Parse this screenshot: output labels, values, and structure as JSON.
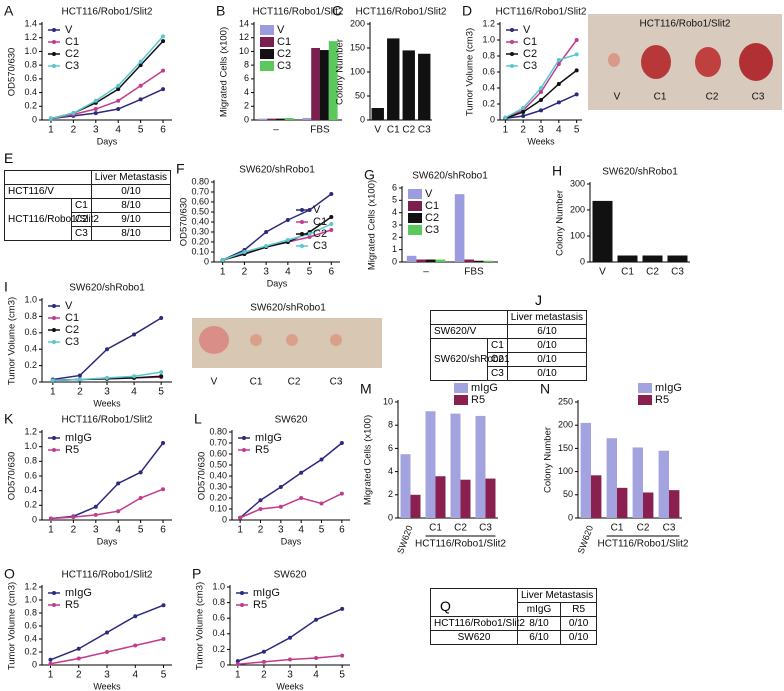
{
  "chart_data": [
    {
      "type": "line",
      "panel": "A",
      "title": "HCT116/Robo1/Slit2",
      "ylabel": "OD570/630",
      "xlabel": "Days",
      "legend": "upper left",
      "x": [
        1,
        2,
        3,
        4,
        5,
        6
      ],
      "xlim": [
        0.6,
        6.4
      ],
      "xticks": [
        1,
        2,
        3,
        4,
        5,
        6
      ],
      "ylim": [
        0,
        1.4
      ],
      "yticks": [
        0,
        0.2,
        0.4,
        0.6,
        0.8,
        {
          "value": 1,
          "label": "1.0"
        },
        1.2,
        1.4
      ],
      "series": [
        {
          "name": "V",
          "color": "#2b2a7d",
          "values": [
            0.02,
            0.06,
            0.1,
            0.16,
            0.3,
            0.45
          ]
        },
        {
          "name": "C1",
          "color": "#c23b8c",
          "values": [
            0.02,
            0.08,
            0.16,
            0.28,
            0.5,
            0.72
          ]
        },
        {
          "name": "C2",
          "color": "#111111",
          "values": [
            0.02,
            0.1,
            0.25,
            0.45,
            0.8,
            1.15
          ]
        },
        {
          "name": "C3",
          "color": "#5bc8d0",
          "values": [
            0.02,
            0.1,
            0.28,
            0.5,
            0.85,
            1.22
          ]
        }
      ]
    },
    {
      "type": "bar",
      "panel": "B",
      "title": "HCT116/Robo1/Slit2",
      "ylabel": "Migrated Cells (x100)",
      "legend": "upper left",
      "categories": [
        "–",
        "FBS"
      ],
      "ylim": [
        0,
        14
      ],
      "yticks": [
        0,
        2,
        4,
        6,
        8,
        10,
        12,
        14
      ],
      "series": [
        {
          "name": "V",
          "color": "#9b9be0",
          "values": [
            0.2,
            0.3
          ]
        },
        {
          "name": "C1",
          "color": "#7a1f4e",
          "values": [
            0.2,
            10.5
          ]
        },
        {
          "name": "C2",
          "color": "#111111",
          "values": [
            0.2,
            10.2
          ]
        },
        {
          "name": "C3",
          "color": "#5ac85a",
          "values": [
            0.3,
            11.5
          ]
        }
      ]
    },
    {
      "type": "bar",
      "panel": "C",
      "title": "HCT116/Robo1/Slit2",
      "ylabel": "Colony Number",
      "categories": [
        "V",
        "C1",
        "C2",
        "C3"
      ],
      "ylim": [
        0,
        200
      ],
      "yticks": [
        0,
        50,
        100,
        150,
        200
      ],
      "series": [
        {
          "color": "#111111",
          "values": [
            25,
            170,
            145,
            138
          ]
        }
      ]
    },
    {
      "type": "line",
      "panel": "D",
      "title": "HCT116/Robo1/Slit2",
      "ylabel": "Tumor Volume (cm3)",
      "xlabel": "Weeks",
      "legend": "upper left",
      "x": [
        1,
        2,
        3,
        4,
        5
      ],
      "xlim": [
        0.7,
        5.3
      ],
      "xticks": [
        1,
        2,
        3,
        4,
        5
      ],
      "ylim": [
        0,
        1.2
      ],
      "yticks": [
        0,
        0.2,
        0.4,
        0.6,
        0.8,
        {
          "value": 1,
          "label": "1.0"
        },
        1.2
      ],
      "series": [
        {
          "name": "V",
          "color": "#2b2a7d",
          "values": [
            0.02,
            0.05,
            0.12,
            0.22,
            0.32
          ]
        },
        {
          "name": "C1",
          "color": "#c23b8c",
          "values": [
            0.03,
            0.12,
            0.35,
            0.7,
            1.0
          ]
        },
        {
          "name": "C2",
          "color": "#111111",
          "values": [
            0.02,
            0.1,
            0.25,
            0.45,
            0.62
          ]
        },
        {
          "name": "C3",
          "color": "#5bc8d0",
          "values": [
            0.03,
            0.15,
            0.4,
            0.75,
            0.82
          ]
        }
      ]
    },
    {
      "type": "line",
      "panel": "F",
      "title": "SW620/shRobo1",
      "ylabel": "OD570/630",
      "xlabel": "Days",
      "legend": "lower right",
      "x": [
        1,
        2,
        3,
        4,
        5,
        6
      ],
      "xlim": [
        0.6,
        6.4
      ],
      "xticks": [
        1,
        2,
        3,
        4,
        5,
        6
      ],
      "ylim": [
        0,
        0.8
      ],
      "yticks": [
        0,
        {
          "value": 0.1,
          "label": "0.10"
        },
        {
          "value": 0.2,
          "label": "0.20"
        },
        {
          "value": 0.3,
          "label": "0.30"
        },
        {
          "value": 0.4,
          "label": "0.40"
        },
        {
          "value": 0.5,
          "label": "0.50"
        },
        {
          "value": 0.6,
          "label": "0.60"
        },
        {
          "value": 0.7,
          "label": "0.70"
        },
        {
          "value": 0.8,
          "label": "0.80"
        }
      ],
      "series": [
        {
          "name": "V",
          "color": "#2b2a7d",
          "values": [
            0.02,
            0.12,
            0.3,
            0.42,
            0.52,
            0.68
          ]
        },
        {
          "name": "C1",
          "color": "#c23b8c",
          "values": [
            0.02,
            0.08,
            0.15,
            0.2,
            0.25,
            0.32
          ]
        },
        {
          "name": "C2",
          "color": "#111111",
          "values": [
            0.02,
            0.08,
            0.15,
            0.2,
            0.3,
            0.45
          ]
        },
        {
          "name": "C3",
          "color": "#5bc8d0",
          "values": [
            0.02,
            0.1,
            0.16,
            0.22,
            0.28,
            0.38
          ]
        }
      ]
    },
    {
      "type": "bar",
      "panel": "G",
      "title": "SW620/shRobo1",
      "ylabel": "Migrated Cells (x100)",
      "legend": "upper left",
      "categories": [
        "–",
        "FBS"
      ],
      "ylim": [
        0,
        6
      ],
      "yticks": [
        0,
        1,
        2,
        3,
        4,
        5,
        6
      ],
      "series": [
        {
          "name": "V",
          "color": "#9b9be0",
          "values": [
            0.5,
            5.5
          ]
        },
        {
          "name": "C1",
          "color": "#7a1f4e",
          "values": [
            0.2,
            0.2
          ]
        },
        {
          "name": "C2",
          "color": "#111111",
          "values": [
            0.2,
            0.1
          ]
        },
        {
          "name": "C3",
          "color": "#5ac85a",
          "values": [
            0.2,
            0.1
          ]
        }
      ]
    },
    {
      "type": "bar",
      "panel": "H",
      "title": "SW620/shRobo1",
      "ylabel": "Colony Number",
      "categories": [
        "V",
        "C1",
        "C2",
        "C3"
      ],
      "ylim": [
        0,
        300
      ],
      "yticks": [
        0,
        100,
        200,
        300
      ],
      "series": [
        {
          "color": "#111111",
          "values": [
            235,
            25,
            25,
            25
          ]
        }
      ]
    },
    {
      "type": "line",
      "panel": "I",
      "title": "SW620/shRobo1",
      "ylabel": "Tumor Volume (cm3)",
      "xlabel": "Weeks",
      "legend": "upper left",
      "x": [
        1,
        2,
        3,
        4,
        5
      ],
      "xlim": [
        0.6,
        5.4
      ],
      "xticks": [
        1,
        2,
        3,
        4,
        5
      ],
      "ylim": [
        0,
        1
      ],
      "yticks": [
        0,
        0.2,
        0.4,
        0.6,
        0.8,
        {
          "value": 1,
          "label": "1.0"
        }
      ],
      "series": [
        {
          "name": "V",
          "color": "#2b2a7d",
          "values": [
            0.03,
            0.08,
            0.4,
            0.58,
            0.78
          ]
        },
        {
          "name": "C1",
          "color": "#c23b8c",
          "values": [
            0.02,
            0.03,
            0.04,
            0.05,
            0.06
          ]
        },
        {
          "name": "C2",
          "color": "#111111",
          "values": [
            0.02,
            0.03,
            0.04,
            0.05,
            0.07
          ]
        },
        {
          "name": "C3",
          "color": "#5bc8d0",
          "values": [
            0.02,
            0.03,
            0.05,
            0.07,
            0.12
          ]
        }
      ]
    },
    {
      "type": "line",
      "panel": "K",
      "title": "HCT116/Robo1/Slit2",
      "ylabel": "OD570/630",
      "xlabel": "Days",
      "legend": "upper left",
      "x": [
        1,
        2,
        3,
        4,
        5,
        6
      ],
      "xlim": [
        0.6,
        6.4
      ],
      "xticks": [
        1,
        2,
        3,
        4,
        5,
        6
      ],
      "ylim": [
        0,
        1.2
      ],
      "yticks": [
        0,
        0.2,
        0.4,
        0.6,
        0.8,
        {
          "value": 1,
          "label": "1.0"
        },
        1.2
      ],
      "series": [
        {
          "name": "mIgG",
          "color": "#2b2a7d",
          "values": [
            0.02,
            0.05,
            0.18,
            0.5,
            0.65,
            1.05
          ]
        },
        {
          "name": "R5",
          "color": "#c23b8c",
          "values": [
            0.02,
            0.04,
            0.07,
            0.12,
            0.3,
            0.42
          ]
        }
      ]
    },
    {
      "type": "line",
      "panel": "L",
      "title": "SW620",
      "ylabel": "OD570/630",
      "xlabel": "Days",
      "legend": "upper left",
      "x": [
        1,
        2,
        3,
        4,
        5,
        6
      ],
      "xlim": [
        0.6,
        6.4
      ],
      "xticks": [
        1,
        2,
        3,
        4,
        5,
        6
      ],
      "ylim": [
        0,
        0.8
      ],
      "yticks": [
        0,
        {
          "value": 0.1,
          "label": "0.10"
        },
        {
          "value": 0.2,
          "label": "0.20"
        },
        {
          "value": 0.3,
          "label": "0.30"
        },
        {
          "value": 0.4,
          "label": "0.40"
        },
        {
          "value": 0.5,
          "label": "0.50"
        },
        {
          "value": 0.6,
          "label": "0.60"
        },
        {
          "value": 0.7,
          "label": "0.70"
        },
        {
          "value": 0.8,
          "label": "0.80"
        }
      ],
      "series": [
        {
          "name": "mIgG",
          "color": "#2b2a7d",
          "values": [
            0.02,
            0.18,
            0.3,
            0.43,
            0.55,
            0.7
          ]
        },
        {
          "name": "R5",
          "color": "#c23b8c",
          "values": [
            0.02,
            0.1,
            0.12,
            0.2,
            0.15,
            0.24
          ]
        }
      ]
    },
    {
      "type": "bar",
      "panel": "M",
      "ylabel": "Migrated Cells (x100)",
      "legend": "above right",
      "group_label": "HCT116/Robo1/Slit2",
      "categories": [
        "SW620",
        "C1",
        "C2",
        "C3"
      ],
      "ylim": [
        0,
        10
      ],
      "yticks": [
        0,
        2,
        4,
        6,
        8,
        10
      ],
      "series": [
        {
          "name": "mIgG",
          "color": "#a3a3e0",
          "values": [
            5.5,
            9.2,
            9.0,
            8.8
          ]
        },
        {
          "name": "R5",
          "color": "#8a2050",
          "values": [
            2.0,
            3.6,
            3.3,
            3.4
          ]
        }
      ]
    },
    {
      "type": "bar",
      "panel": "N",
      "ylabel": "Colony Number",
      "legend": "above right",
      "group_label": "HCT116/Robo1/Slit2",
      "categories": [
        "SW620",
        "C1",
        "C2",
        "C3"
      ],
      "ylim": [
        0,
        250
      ],
      "yticks": [
        0,
        50,
        100,
        150,
        200,
        250
      ],
      "series": [
        {
          "name": "mIgG",
          "color": "#a3a3e0",
          "values": [
            205,
            172,
            152,
            145
          ]
        },
        {
          "name": "R5",
          "color": "#8a2050",
          "values": [
            92,
            65,
            55,
            60
          ]
        }
      ]
    },
    {
      "type": "line",
      "panel": "O",
      "title": "HCT116/Robo1/Slit2",
      "ylabel": "Tumor Volume (cm3)",
      "xlabel": "Weeks",
      "legend": "upper left",
      "x": [
        1,
        2,
        3,
        4,
        5
      ],
      "xlim": [
        0.7,
        5.3
      ],
      "xticks": [
        1,
        2,
        3,
        4,
        5
      ],
      "ylim": [
        0,
        1.2
      ],
      "yticks": [
        0,
        0.2,
        0.4,
        0.6,
        0.8,
        {
          "value": 1,
          "label": "1.0"
        },
        1.2
      ],
      "series": [
        {
          "name": "mIgG",
          "color": "#2b2a7d",
          "values": [
            0.08,
            0.25,
            0.5,
            0.75,
            0.92
          ]
        },
        {
          "name": "R5",
          "color": "#c23b8c",
          "values": [
            0.02,
            0.1,
            0.2,
            0.3,
            0.4
          ]
        }
      ]
    },
    {
      "type": "line",
      "panel": "P",
      "title": "SW620",
      "ylabel": "Tumor Volume (cm3)",
      "xlabel": "Weeks",
      "legend": "upper left",
      "x": [
        1,
        2,
        3,
        4,
        5
      ],
      "xlim": [
        0.7,
        5.3
      ],
      "xticks": [
        1,
        2,
        3,
        4,
        5
      ],
      "ylim": [
        0,
        1
      ],
      "yticks": [
        0,
        0.2,
        0.4,
        0.6,
        0.8,
        {
          "value": 1,
          "label": "1.0"
        }
      ],
      "series": [
        {
          "name": "mIgG",
          "color": "#2b2a7d",
          "values": [
            0.05,
            0.17,
            0.35,
            0.58,
            0.72
          ]
        },
        {
          "name": "R5",
          "color": "#c23b8c",
          "values": [
            0.01,
            0.04,
            0.07,
            0.09,
            0.12
          ]
        }
      ]
    }
  ],
  "photos": [
    {
      "title": "HCT116/Robo1/Slit2",
      "labels": [
        "V",
        "C1",
        "C2",
        "C3"
      ]
    },
    {
      "title": "SW620/shRobo1",
      "labels": [
        "V",
        "C1",
        "C2",
        "C3"
      ]
    }
  ],
  "tables": [
    {
      "panel": "E",
      "header": "Liver Metastasis",
      "rows": [
        {
          "label": "HCT116/V",
          "value": "0/10"
        },
        {
          "label": "HCT116/Robo1/Slit2",
          "sub": [
            {
              "label": "C1",
              "value": "8/10"
            },
            {
              "label": "C2",
              "value": "9/10"
            },
            {
              "label": "C3",
              "value": "8/10"
            }
          ]
        }
      ]
    },
    {
      "panel": "J",
      "header": "Liver metastasis",
      "rows": [
        {
          "label": "SW620/V",
          "value": "6/10"
        },
        {
          "label": "SW620/shRobo1",
          "sub": [
            {
              "label": "C1",
              "value": "0/10"
            },
            {
              "label": "C2",
              "value": "0/10"
            },
            {
              "label": "C3",
              "value": "0/10"
            }
          ]
        }
      ]
    },
    {
      "panel": "Q",
      "header": "Liver Metastasis",
      "columns": [
        "mIgG",
        "R5"
      ],
      "rows": [
        {
          "label": "HCT116/Robo1/Slit2",
          "values": [
            "8/10",
            "0/10"
          ]
        },
        {
          "label": "SW620",
          "values": [
            "6/10",
            "0/10"
          ]
        }
      ]
    }
  ]
}
